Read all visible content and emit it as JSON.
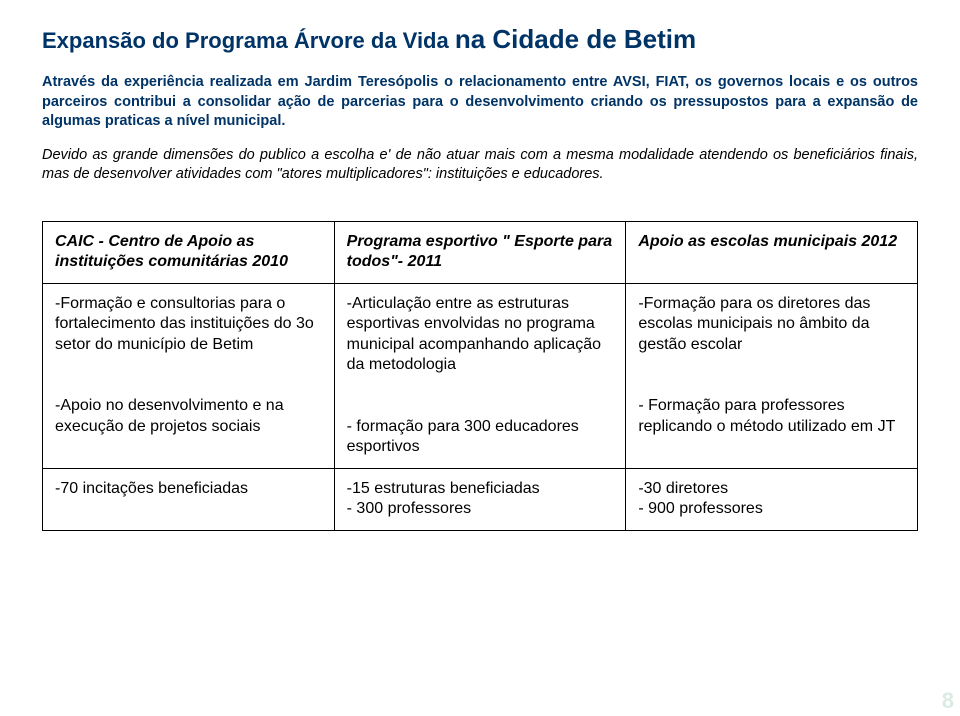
{
  "title_part1": "Expansão do Programa Árvore da Vida ",
  "title_part2": "na Cidade de Betim",
  "paragraph1": "Através da experiência realizada em Jardim Teresópolis o relacionamento entre AVSI, FIAT, os governos locais e os outros parceiros contribui a consolidar ação de parcerias para o desenvolvimento criando os pressupostos para a expansão de algumas praticas a nível municipal.",
  "paragraph2": "Devido as grande dimensões do publico a escolha e' de não atuar mais com a mesma modalidade atendendo os beneficiários finais, mas de desenvolver atividades com \"atores multiplicadores\": instituições e educadores.",
  "table": {
    "rows": [
      [
        "CAIC - Centro de Apoio as instituições comunitárias 2010",
        "Programa esportivo \" Esporte para todos\"- 2011",
        "Apoio as escolas municipais 2012"
      ],
      [
        "-Formação e consultorias para o fortalecimento das instituições do 3o setor do município de Betim\n\n-Apoio no desenvolvimento e na execução de projetos sociais",
        "-Articulação entre as estruturas esportivas envolvidas no programa municipal acompanhando aplicação da metodologia\n\n- formação para 300 educadores esportivos",
        "-Formação para os diretores das escolas municipais no âmbito da gestão escolar\n\n- Formação para professores replicando o método utilizado em JT"
      ],
      [
        "-70 incitações beneficiadas",
        "-15 estruturas beneficiadas\n- 300 professores",
        "-30 diretores\n- 900 professores"
      ]
    ]
  },
  "page_number": "8"
}
